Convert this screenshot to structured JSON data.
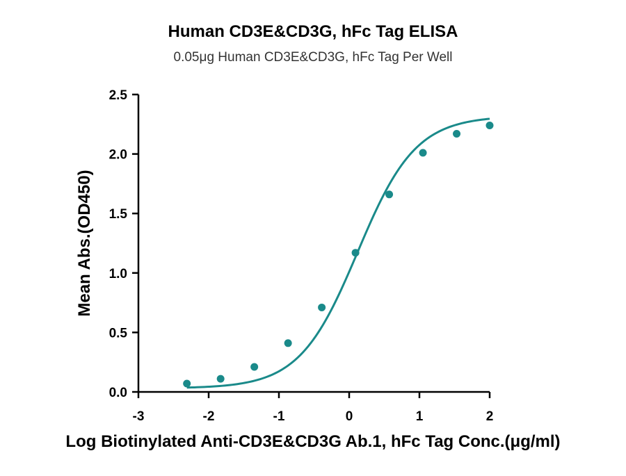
{
  "chart_data": {
    "type": "line",
    "title": "Human CD3E&CD3G, hFc Tag ELISA",
    "subtitle": "0.05μg Human CD3E&CD3G, hFc Tag Per Well",
    "xlabel": "Log Biotinylated Anti-CD3E&CD3G Ab.1, hFc Tag Conc.(μg/ml)",
    "ylabel": "Mean Abs.(OD450)",
    "xlim": [
      -3,
      2
    ],
    "ylim": [
      0,
      2.5
    ],
    "xticks": [
      "-3",
      "-2",
      "-1",
      "0",
      "1",
      "2"
    ],
    "yticks": [
      "0.0",
      "0.5",
      "1.0",
      "1.5",
      "2.0",
      "2.5"
    ],
    "grid": false,
    "color": "#1a8a8a",
    "series": [
      {
        "x": [
          -2.31,
          -1.83,
          -1.35,
          -0.87,
          -0.39,
          0.09,
          0.57,
          1.05,
          1.53,
          2.0
        ],
        "y": [
          0.07,
          0.11,
          0.21,
          0.41,
          0.71,
          1.17,
          1.66,
          2.01,
          2.17,
          2.24
        ]
      }
    ]
  }
}
